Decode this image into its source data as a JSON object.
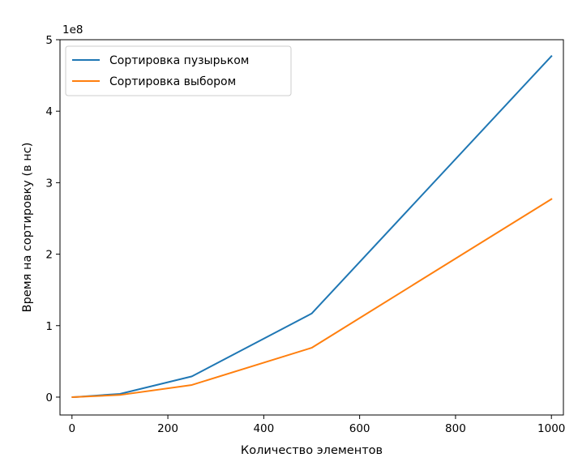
{
  "chart_data": {
    "type": "line",
    "xlabel": "Количество элементов",
    "ylabel": "Время на сортировку (в нс)",
    "y_offset_label": "1e8",
    "xlim": [
      -25,
      1025
    ],
    "ylim": [
      -0.25,
      5.0
    ],
    "y_scale_multiplier": 100000000,
    "x_ticks": [
      0,
      200,
      400,
      600,
      800,
      1000
    ],
    "y_ticks": [
      0,
      1,
      2,
      3,
      4,
      5
    ],
    "grid": false,
    "legend_placement": "upper-left",
    "series": [
      {
        "name": "Сортировка пузырьком",
        "color": "#1f77b4",
        "x": [
          1,
          10,
          100,
          250,
          500,
          1000
        ],
        "y": [
          0.0,
          0.003,
          0.045,
          0.29,
          1.17,
          4.77
        ]
      },
      {
        "name": "Сортировка выбором",
        "color": "#ff7f0e",
        "x": [
          1,
          10,
          100,
          250,
          500,
          1000
        ],
        "y": [
          0.0,
          0.002,
          0.03,
          0.17,
          0.69,
          2.77
        ]
      }
    ]
  }
}
